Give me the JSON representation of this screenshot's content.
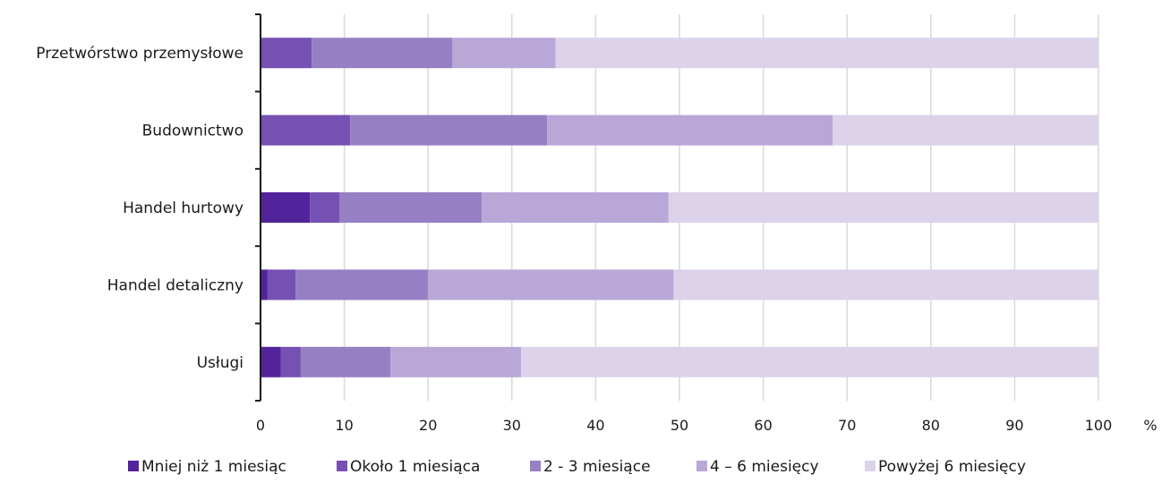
{
  "chart_data": {
    "type": "bar",
    "orientation": "horizontal",
    "stacked": true,
    "categories": [
      "Przetwórstwo przemysłowe",
      "Budownictwo",
      "Handel hurtowy",
      "Handel detaliczny",
      "Usługi"
    ],
    "series": [
      {
        "name": "Mniej niż 1 miesiąc",
        "color": "#52239a",
        "values": [
          0,
          0,
          5.9,
          0.8,
          2.4
        ]
      },
      {
        "name": "Około 1 miesiąca",
        "color": "#7650b3",
        "values": [
          6.1,
          10.7,
          3.5,
          3.4,
          2.4
        ]
      },
      {
        "name": "2 - 3 miesiące",
        "color": "#977fc4",
        "values": [
          16.8,
          23.5,
          17.0,
          15.8,
          10.7
        ]
      },
      {
        "name": "4 – 6 miesięcy",
        "color": "#b9a7d7",
        "values": [
          12.3,
          34.1,
          22.3,
          29.3,
          15.6
        ]
      },
      {
        "name": "Powyżej 6 miesięcy",
        "color": "#dcd3eb",
        "values": [
          64.8,
          31.7,
          51.3,
          50.7,
          68.9
        ]
      }
    ],
    "xlim": [
      0,
      100
    ],
    "xticks": [
      "0",
      "10",
      "20",
      "30",
      "40",
      "50",
      "60",
      "70",
      "80",
      "90",
      "100"
    ],
    "xunit": "%",
    "grid": true,
    "legend_position": "bottom"
  }
}
